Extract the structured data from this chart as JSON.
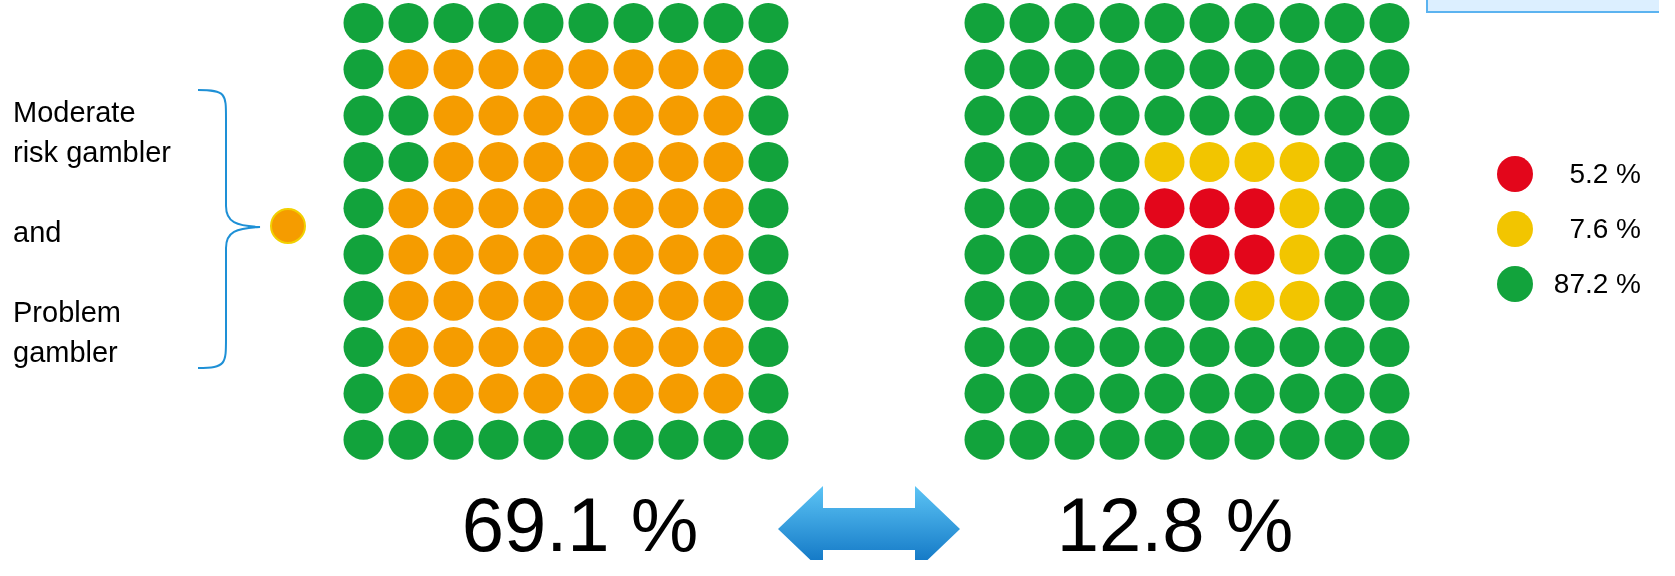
{
  "chart_data": [
    {
      "type": "other",
      "categories": [
        "Moderate\nrisk gambler\n\nand\n\nProblem\ngambler"
      ],
      "colors": [
        "#f59c00"
      ],
      "annotations": [
        "69.1 %"
      ]
    },
    {
      "type": "other",
      "categories": [
        null,
        null,
        null
      ],
      "values": [
        5.2,
        7.6,
        87.2
      ],
      "value_labels": [
        "5.2 %",
        "7.6 %",
        "87.2 %"
      ],
      "colors": [
        "#e3061b",
        "#f2c500",
        "#12a33c"
      ],
      "annotations": [
        "12.8 %"
      ]
    }
  ]
}
